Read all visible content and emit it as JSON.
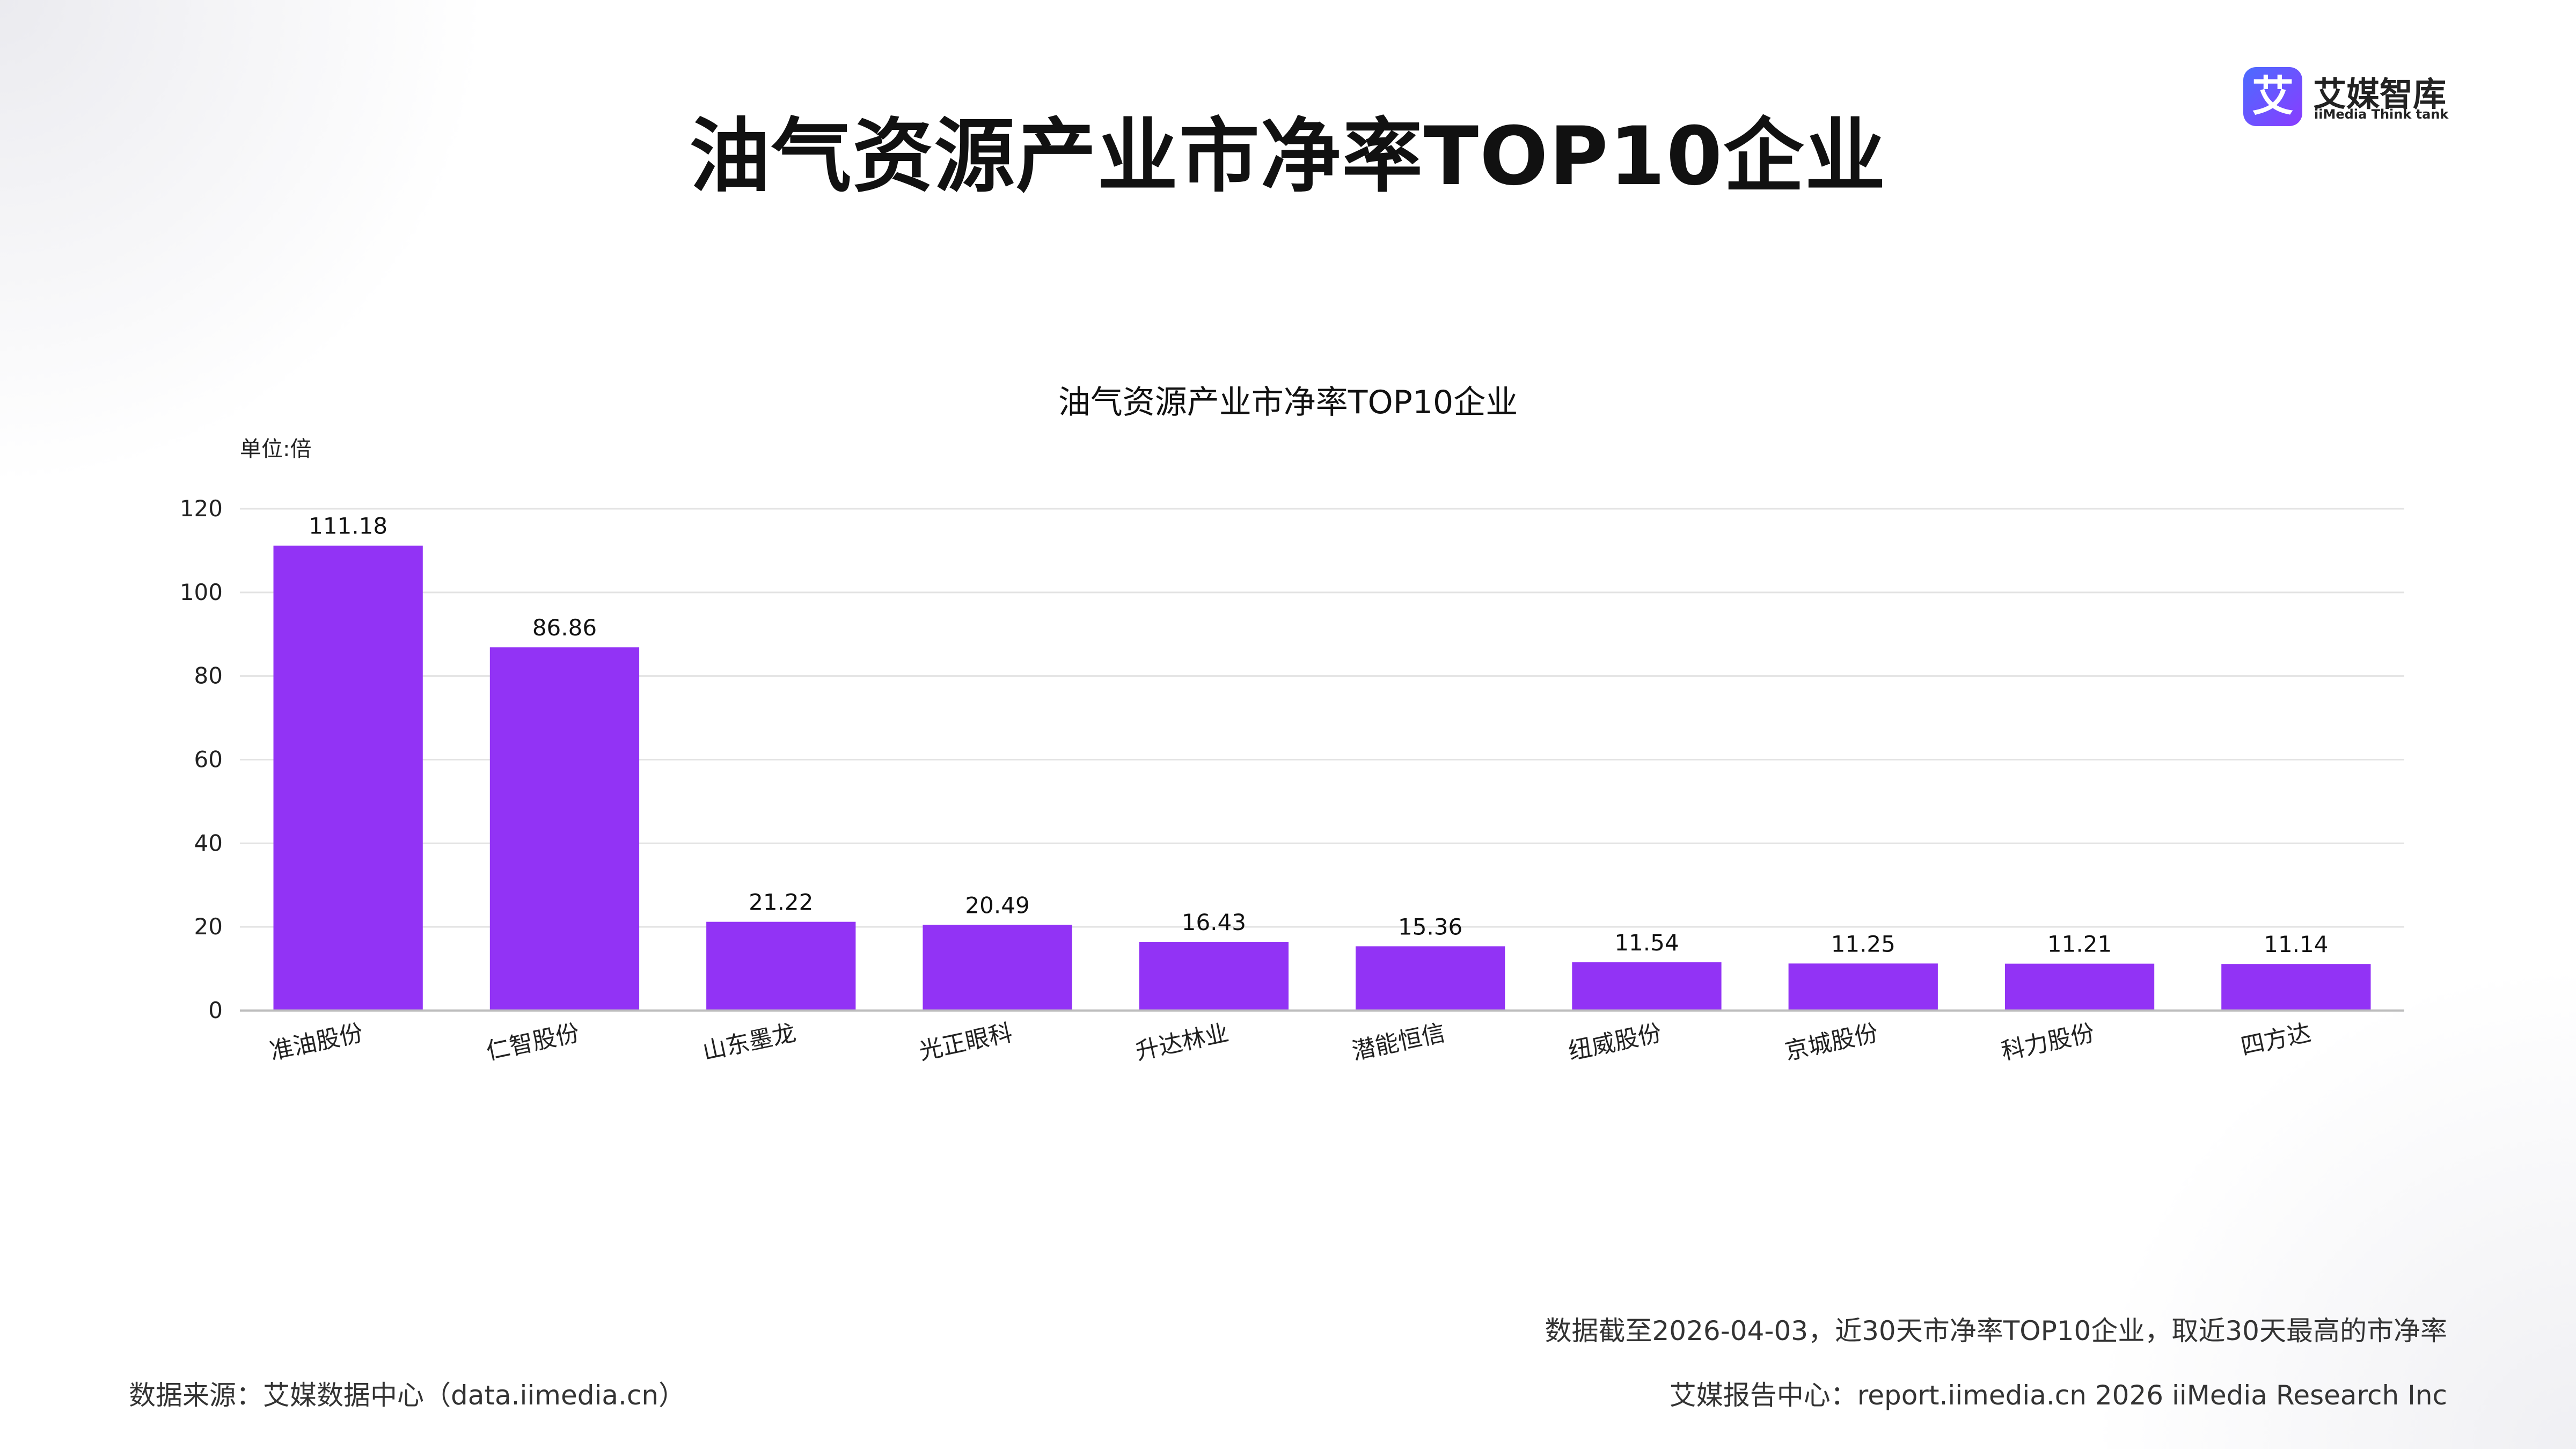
{
  "page_title": "油气资源产业市净率TOP10企业",
  "logo": {
    "mark": "艾",
    "name_cn": "艾媒智库",
    "name_en": "iiMedia Think tank"
  },
  "chart_data": {
    "type": "bar",
    "title": "油气资源产业市净率TOP10企业",
    "unit_label": "单位:倍",
    "categories": [
      "准油股份",
      "仁智股份",
      "山东墨龙",
      "光正眼科",
      "升达林业",
      "潜能恒信",
      "纽威股份",
      "京城股份",
      "科力股份",
      "四方达"
    ],
    "values": [
      111.18,
      86.86,
      21.22,
      20.49,
      16.43,
      15.36,
      11.54,
      11.25,
      11.21,
      11.14
    ],
    "value_labels": [
      "111.18",
      "86.86",
      "21.22",
      "20.49",
      "16.43",
      "15.36",
      "11.54",
      "11.25",
      "11.21",
      "11.14"
    ],
    "ylim": [
      0,
      120
    ],
    "yticks": [
      0,
      20,
      40,
      60,
      80,
      100,
      120
    ],
    "grid": true,
    "bar_color": "#9233f5"
  },
  "footer": {
    "note": "数据截至2026-04-03，近30天市净率TOP10企业，取近30天最高的市净率",
    "source": "数据来源：艾媒数据中心（data.iimedia.cn）",
    "report": "艾媒报告中心：report.iimedia.cn   2026 iiMedia Research Inc"
  }
}
